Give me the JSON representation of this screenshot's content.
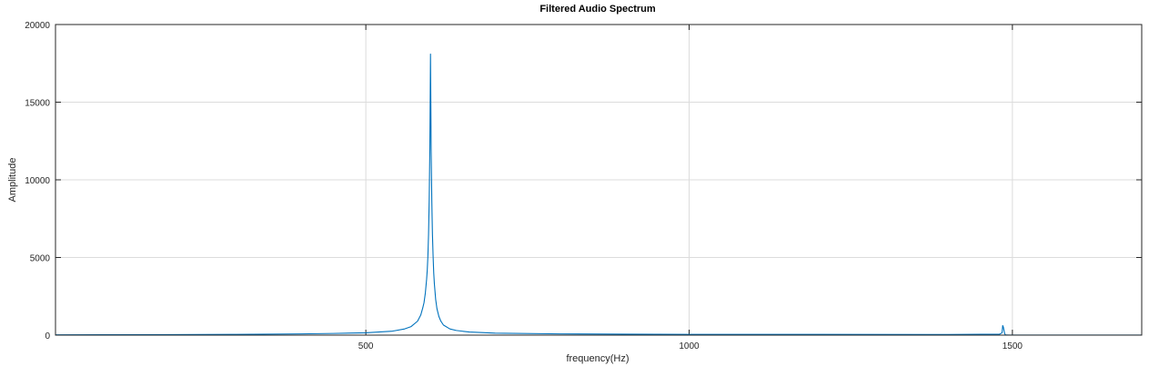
{
  "chart_data": {
    "type": "line",
    "title": "Filtered Audio Spectrum",
    "xlabel": "frequency(Hz)",
    "ylabel": "Amplitude",
    "xlim": [
      20,
      1700
    ],
    "ylim": [
      0,
      20000
    ],
    "xticks": [
      500,
      1000,
      1500
    ],
    "xtick_labels": [
      "500",
      "1000",
      "1500"
    ],
    "yticks": [
      0,
      5000,
      10000,
      15000,
      20000
    ],
    "ytick_labels": [
      "0",
      "5000",
      "10000",
      "15000",
      "20000"
    ],
    "grid": true,
    "line_color": "#0072BD",
    "series": [
      {
        "x": [
          20,
          100,
          200,
          300,
          400,
          450,
          500,
          540,
          560,
          570,
          580,
          585,
          588,
          590,
          592,
          594,
          595,
          596,
          597,
          598,
          599,
          599.5,
          600,
          600.5,
          601,
          602,
          603,
          604,
          605,
          606,
          608,
          610,
          613,
          616,
          620,
          630,
          640,
          660,
          700,
          800,
          900,
          1000,
          1200,
          1400,
          1480,
          1484,
          1485,
          1486,
          1487,
          1488,
          1489,
          1490,
          1495,
          1600,
          1700
        ],
        "y": [
          20,
          25,
          35,
          50,
          80,
          110,
          150,
          250,
          400,
          550,
          900,
          1300,
          1750,
          2100,
          2700,
          3600,
          4200,
          5100,
          6500,
          8700,
          12000,
          15000,
          18100,
          15000,
          12000,
          8700,
          6500,
          5100,
          4000,
          3300,
          2300,
          1700,
          1200,
          900,
          650,
          400,
          300,
          200,
          130,
          80,
          60,
          50,
          45,
          40,
          60,
          150,
          620,
          520,
          300,
          100,
          30,
          10,
          5,
          5,
          5
        ]
      }
    ]
  }
}
